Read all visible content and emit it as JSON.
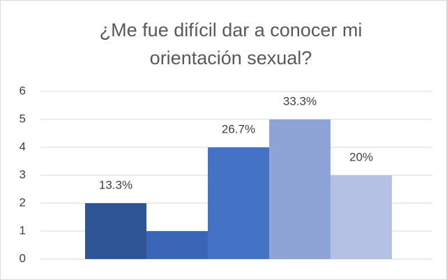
{
  "chart_data": {
    "type": "bar",
    "title": "¿Me fue difícil dar a conocer mi orientación sexual?",
    "categories": [
      null,
      null,
      null,
      null,
      null
    ],
    "values": [
      2,
      1,
      4,
      5,
      3
    ],
    "colors": [
      "#2f5597",
      "#3a66b8",
      "#4472c4",
      "#8ea3d6",
      "#b4c0e4"
    ],
    "annotations": [
      "13.3%",
      null,
      "26.7%",
      "33.3%",
      "20%"
    ],
    "ylim": [
      0,
      6
    ],
    "yticks": [
      0,
      1,
      2,
      3,
      4,
      5,
      6
    ],
    "grid": true
  }
}
